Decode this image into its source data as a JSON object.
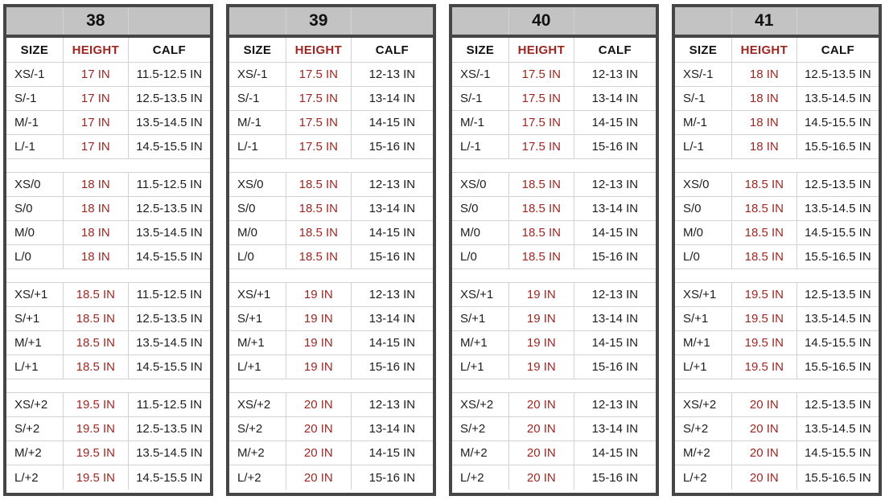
{
  "colors": {
    "outer_border": "#464646",
    "title_band_bg": "#c3c3c3",
    "grid_line": "#d2d2d2",
    "height_red": "#9c2722",
    "text": "#1d1d1d"
  },
  "columns": [
    "SIZE",
    "HEIGHT",
    "CALF"
  ],
  "tables": [
    {
      "title": "38",
      "groups": [
        {
          "rows": [
            [
              "XS/-1",
              "17 IN",
              "11.5-12.5 IN"
            ],
            [
              "S/-1",
              "17 IN",
              "12.5-13.5 IN"
            ],
            [
              "M/-1",
              "17 IN",
              "13.5-14.5 IN"
            ],
            [
              "L/-1",
              "17 IN",
              "14.5-15.5 IN"
            ]
          ]
        },
        {
          "rows": [
            [
              "XS/0",
              "18 IN",
              "11.5-12.5 IN"
            ],
            [
              "S/0",
              "18 IN",
              "12.5-13.5 IN"
            ],
            [
              "M/0",
              "18 IN",
              "13.5-14.5 IN"
            ],
            [
              "L/0",
              "18 IN",
              "14.5-15.5 IN"
            ]
          ]
        },
        {
          "rows": [
            [
              "XS/+1",
              "18.5 IN",
              "11.5-12.5 IN"
            ],
            [
              "S/+1",
              "18.5 IN",
              "12.5-13.5 IN"
            ],
            [
              "M/+1",
              "18.5 IN",
              "13.5-14.5 IN"
            ],
            [
              "L/+1",
              "18.5 IN",
              "14.5-15.5 IN"
            ]
          ]
        },
        {
          "rows": [
            [
              "XS/+2",
              "19.5 IN",
              "11.5-12.5 IN"
            ],
            [
              "S/+2",
              "19.5 IN",
              "12.5-13.5 IN"
            ],
            [
              "M/+2",
              "19.5 IN",
              "13.5-14.5 IN"
            ],
            [
              "L/+2",
              "19.5 IN",
              "14.5-15.5 IN"
            ]
          ]
        }
      ]
    },
    {
      "title": "39",
      "groups": [
        {
          "rows": [
            [
              "XS/-1",
              "17.5 IN",
              "12-13 IN"
            ],
            [
              "S/-1",
              "17.5 IN",
              "13-14 IN"
            ],
            [
              "M/-1",
              "17.5 IN",
              "14-15 IN"
            ],
            [
              "L/-1",
              "17.5 IN",
              "15-16 IN"
            ]
          ]
        },
        {
          "rows": [
            [
              "XS/0",
              "18.5 IN",
              "12-13 IN"
            ],
            [
              "S/0",
              "18.5 IN",
              "13-14 IN"
            ],
            [
              "M/0",
              "18.5 IN",
              "14-15 IN"
            ],
            [
              "L/0",
              "18.5 IN",
              "15-16 IN"
            ]
          ]
        },
        {
          "rows": [
            [
              "XS/+1",
              "19 IN",
              "12-13 IN"
            ],
            [
              "S/+1",
              "19 IN",
              "13-14 IN"
            ],
            [
              "M/+1",
              "19 IN",
              "14-15 IN"
            ],
            [
              "L/+1",
              "19 IN",
              "15-16 IN"
            ]
          ]
        },
        {
          "rows": [
            [
              "XS/+2",
              "20 IN",
              "12-13 IN"
            ],
            [
              "S/+2",
              "20 IN",
              "13-14 IN"
            ],
            [
              "M/+2",
              "20 IN",
              "14-15 IN"
            ],
            [
              "L/+2",
              "20 IN",
              "15-16 IN"
            ]
          ]
        }
      ]
    },
    {
      "title": "40",
      "groups": [
        {
          "rows": [
            [
              "XS/-1",
              "17.5 IN",
              "12-13 IN"
            ],
            [
              "S/-1",
              "17.5 IN",
              "13-14 IN"
            ],
            [
              "M/-1",
              "17.5 IN",
              "14-15 IN"
            ],
            [
              "L/-1",
              "17.5 IN",
              "15-16 IN"
            ]
          ]
        },
        {
          "rows": [
            [
              "XS/0",
              "18.5 IN",
              "12-13 IN"
            ],
            [
              "S/0",
              "18.5 IN",
              "13-14 IN"
            ],
            [
              "M/0",
              "18.5 IN",
              "14-15 IN"
            ],
            [
              "L/0",
              "18.5 IN",
              "15-16 IN"
            ]
          ]
        },
        {
          "rows": [
            [
              "XS/+1",
              "19 IN",
              "12-13 IN"
            ],
            [
              "S/+1",
              "19 IN",
              "13-14 IN"
            ],
            [
              "M/+1",
              "19 IN",
              "14-15 IN"
            ],
            [
              "L/+1",
              "19 IN",
              "15-16 IN"
            ]
          ]
        },
        {
          "rows": [
            [
              "XS/+2",
              "20 IN",
              "12-13 IN"
            ],
            [
              "S/+2",
              "20 IN",
              "13-14 IN"
            ],
            [
              "M/+2",
              "20 IN",
              "14-15 IN"
            ],
            [
              "L/+2",
              "20 IN",
              "15-16 IN"
            ]
          ]
        }
      ]
    },
    {
      "title": "41",
      "groups": [
        {
          "rows": [
            [
              "XS/-1",
              "18 IN",
              "12.5-13.5 IN"
            ],
            [
              "S/-1",
              "18 IN",
              "13.5-14.5 IN"
            ],
            [
              "M/-1",
              "18 IN",
              "14.5-15.5 IN"
            ],
            [
              "L/-1",
              "18 IN",
              "15.5-16.5 IN"
            ]
          ]
        },
        {
          "rows": [
            [
              "XS/0",
              "18.5 IN",
              "12.5-13.5 IN"
            ],
            [
              "S/0",
              "18.5 IN",
              "13.5-14.5 IN"
            ],
            [
              "M/0",
              "18.5 IN",
              "14.5-15.5 IN"
            ],
            [
              "L/0",
              "18.5 IN",
              "15.5-16.5 IN"
            ]
          ]
        },
        {
          "rows": [
            [
              "XS/+1",
              "19.5 IN",
              "12.5-13.5 IN"
            ],
            [
              "S/+1",
              "19.5 IN",
              "13.5-14.5 IN"
            ],
            [
              "M/+1",
              "19.5 IN",
              "14.5-15.5 IN"
            ],
            [
              "L/+1",
              "19.5 IN",
              "15.5-16.5 IN"
            ]
          ]
        },
        {
          "rows": [
            [
              "XS/+2",
              "20 IN",
              "12.5-13.5 IN"
            ],
            [
              "S/+2",
              "20 IN",
              "13.5-14.5 IN"
            ],
            [
              "M/+2",
              "20 IN",
              "14.5-15.5 IN"
            ],
            [
              "L/+2",
              "20 IN",
              "15.5-16.5 IN"
            ]
          ]
        }
      ]
    }
  ]
}
